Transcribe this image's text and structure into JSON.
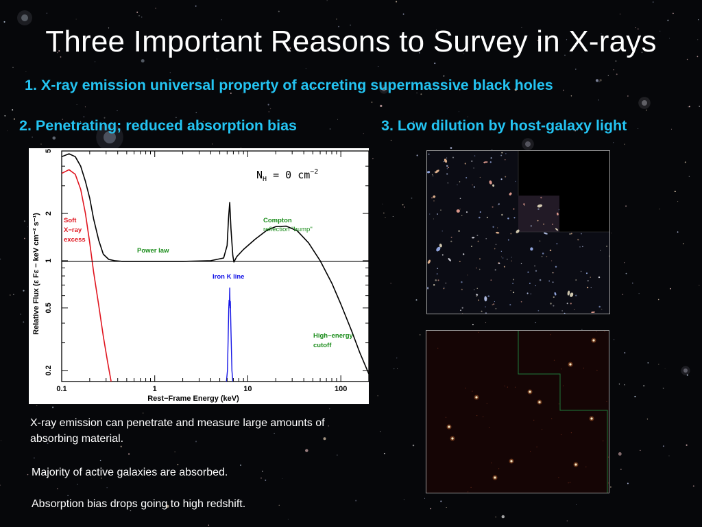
{
  "slide": {
    "title": "Three Important Reasons to Survey in X-rays",
    "reason_1": "1. X-ray emission universal property of accreting supermassive black holes",
    "reason_2": "2. Penetrating; reduced absorption bias",
    "reason_3": "3. Low dilution by host-galaxy light",
    "caption_1": "X-ray emission can penetrate and measure large amounts of absorbing material.",
    "caption_2": "Majority of active galaxies are absorbed.",
    "caption_3": "Absorption bias drops going to high redshift."
  },
  "colors": {
    "reason_text": "#24c4f2",
    "soft_excess": "#e0141e",
    "power_law_label": "#1a8c1a",
    "iron_line": "#1414e6",
    "total_spectrum": "#000000"
  },
  "images": {
    "optical_deep_field": "optical-deep-field-image",
    "xray_field": "xray-field-image"
  },
  "chart_data": {
    "type": "line",
    "title": "",
    "xlabel": "Rest−Frame Energy (keV)",
    "ylabel": "Relative Flux (ε Fε − keV cm⁻² s⁻¹)",
    "x_scale": "log",
    "y_scale": "log",
    "xlim": [
      0.1,
      200
    ],
    "ylim": [
      0.17,
      5
    ],
    "x_ticks": [
      0.1,
      1,
      10,
      100
    ],
    "x_tick_labels": [
      "0.1",
      "1",
      "10",
      "100"
    ],
    "y_ticks": [
      0.2,
      0.5,
      1,
      2,
      5
    ],
    "y_tick_labels": [
      "0.2",
      "0.5",
      "1",
      "2",
      "5"
    ],
    "nh_label": "N_H = 0 cm^-2",
    "annotations": {
      "soft_excess": [
        "Soft",
        "X−ray",
        "excess"
      ],
      "power_law": "Power law",
      "compton": [
        "Compton",
        "reflection \"hump\""
      ],
      "iron": "Iron K line",
      "cutoff": [
        "High−energy",
        "cutoff"
      ]
    },
    "series": [
      {
        "key": "total",
        "x": [
          0.1,
          0.12,
          0.14,
          0.16,
          0.18,
          0.2,
          0.22,
          0.25,
          0.28,
          0.32,
          0.37,
          0.45,
          0.6,
          1,
          2,
          4,
          5.5,
          6.0,
          6.2,
          6.4,
          6.6,
          6.9,
          7.1,
          7.6,
          9,
          12,
          16,
          20,
          26,
          34,
          45,
          60,
          80,
          100,
          130,
          160,
          200
        ],
        "y": [
          4.6,
          4.8,
          4.6,
          4.0,
          3.2,
          2.5,
          1.85,
          1.35,
          1.1,
          1.02,
          1.0,
          0.99,
          0.99,
          0.99,
          0.99,
          1.0,
          1.04,
          1.25,
          1.85,
          2.35,
          1.6,
          1.08,
          0.98,
          1.06,
          1.18,
          1.37,
          1.56,
          1.65,
          1.66,
          1.55,
          1.3,
          1.0,
          0.72,
          0.53,
          0.36,
          0.26,
          0.19
        ]
      },
      {
        "key": "soft_excess",
        "x": [
          0.1,
          0.12,
          0.14,
          0.16,
          0.18,
          0.2,
          0.22,
          0.25,
          0.28,
          0.31,
          0.34
        ],
        "y": [
          3.6,
          3.8,
          3.55,
          2.85,
          2.0,
          1.3,
          0.85,
          0.52,
          0.33,
          0.23,
          0.17
        ]
      },
      {
        "key": "power_law",
        "x": [
          0.1,
          200
        ],
        "y": [
          0.99,
          0.99
        ]
      },
      {
        "key": "iron",
        "x": [
          5.9,
          6.05,
          6.15,
          6.25,
          6.3,
          6.35,
          6.4,
          6.45,
          6.5,
          6.6,
          6.75,
          6.9
        ],
        "y": [
          0.17,
          0.2,
          0.32,
          0.5,
          0.56,
          0.52,
          0.67,
          0.5,
          0.55,
          0.36,
          0.2,
          0.17
        ]
      }
    ]
  }
}
